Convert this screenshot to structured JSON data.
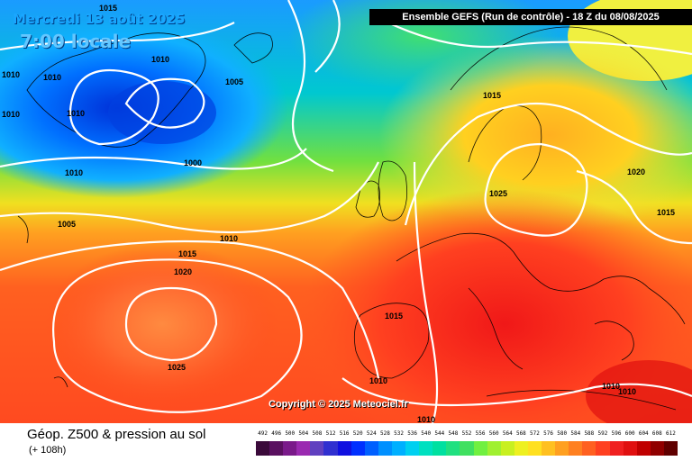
{
  "header": {
    "date": "Mercredi 13 août 2025",
    "time": "7:00 locale",
    "run": "Ensemble GEFS  (Run de contrôle)  -  18 Z du 08/08/2025"
  },
  "copyright": "Copyright © 2025 Meteociel.fr",
  "footer": {
    "title": "Géop. Z500 & pression au sol",
    "subtitle": "(+ 108h)"
  },
  "legend": {
    "ticks": [
      "492",
      "496",
      "500",
      "504",
      "508",
      "512",
      "516",
      "520",
      "524",
      "528",
      "532",
      "536",
      "540",
      "544",
      "548",
      "552",
      "556",
      "560",
      "564",
      "568",
      "572",
      "576",
      "580",
      "584",
      "588",
      "592",
      "596",
      "600",
      "604",
      "608",
      "612"
    ],
    "colors": [
      "#3a0a3a",
      "#5a1060",
      "#7a1a8a",
      "#9a2ab0",
      "#6040c0",
      "#3030d0",
      "#1010e0",
      "#0030ff",
      "#0060ff",
      "#0090ff",
      "#00b0ff",
      "#00d0f0",
      "#00e0c0",
      "#00e0a0",
      "#20e080",
      "#40e060",
      "#70f040",
      "#a0f030",
      "#c8f020",
      "#eef020",
      "#ffe020",
      "#ffc020",
      "#ffa020",
      "#ff8020",
      "#ff6020",
      "#ff4020",
      "#f02020",
      "#e01010",
      "#c00000",
      "#900000",
      "#600000"
    ]
  },
  "isobars": [
    "1015",
    "1010",
    "1010",
    "1010",
    "1010",
    "1005",
    "1010",
    "1000",
    "1010",
    "1005",
    "1010",
    "1015",
    "1020",
    "1025",
    "1015",
    "1025",
    "1020",
    "1015",
    "1015",
    "1010",
    "1010",
    "1010",
    "1010"
  ]
}
